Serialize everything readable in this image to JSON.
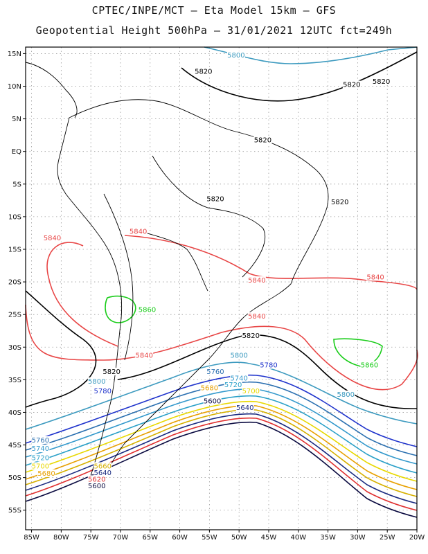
{
  "title_line1": "CPTEC/INPE/MCT –  Eta Model 15km – GFS",
  "title_line2": "Geopotential Height 500hPa – 31/01/2021 12UTC fct=249h",
  "lat_ticks": [
    "15N",
    "10N",
    "5N",
    "EQ",
    "5S",
    "10S",
    "15S",
    "20S",
    "25S",
    "30S",
    "35S",
    "40S",
    "45S",
    "50S",
    "55S"
  ],
  "lon_ticks": [
    "85W",
    "80W",
    "75W",
    "70W",
    "65W",
    "60W",
    "55W",
    "50W",
    "45W",
    "40W",
    "35W",
    "30W",
    "25W",
    "20W"
  ],
  "map_extent": {
    "lon_min": -86,
    "lon_max": -20,
    "lat_min": -58,
    "lat_max": 16
  },
  "contour_colors": {
    "5860": "#18cc18",
    "5840": "#e84646",
    "5820": "#000000",
    "5800": "#3c9abf",
    "5780": "#1f33cc",
    "5760": "#2a6fb0",
    "5740": "#3399cc",
    "5720": "#2aa0c8",
    "5700": "#e8d800",
    "5680": "#e8a000",
    "5660": "#d6b000",
    "5640": "#1a2a80",
    "5620": "#e03030",
    "5600": "#0a0a40"
  },
  "contour_labels": [
    {
      "text": "5800",
      "lon": -50.5,
      "lat": 14.5,
      "color": "#3c9abf"
    },
    {
      "text": "5820",
      "lon": -56,
      "lat": 12.0,
      "color": "#000000"
    },
    {
      "text": "5820",
      "lon": -26,
      "lat": 10.5,
      "color": "#000000"
    },
    {
      "text": "5820",
      "lon": -31,
      "lat": 10.0,
      "color": "#000000"
    },
    {
      "text": "5820",
      "lon": -46,
      "lat": 1.5,
      "color": "#000000"
    },
    {
      "text": "5820",
      "lon": -54,
      "lat": -7.5,
      "color": "#000000"
    },
    {
      "text": "5820",
      "lon": -33,
      "lat": -8.0,
      "color": "#000000"
    },
    {
      "text": "5840",
      "lon": -67,
      "lat": -12.5,
      "color": "#e84646"
    },
    {
      "text": "5840",
      "lon": -81.5,
      "lat": -13.5,
      "color": "#e84646"
    },
    {
      "text": "5840",
      "lon": -47,
      "lat": -20.0,
      "color": "#e84646"
    },
    {
      "text": "5840",
      "lon": -27,
      "lat": -19.5,
      "color": "#e84646"
    },
    {
      "text": "5860",
      "lon": -65.5,
      "lat": -24.5,
      "color": "#18cc18"
    },
    {
      "text": "5840",
      "lon": -47,
      "lat": -25.5,
      "color": "#e84646"
    },
    {
      "text": "5820",
      "lon": -48,
      "lat": -28.5,
      "color": "#000000"
    },
    {
      "text": "5840",
      "lon": -66,
      "lat": -31.5,
      "color": "#e84646"
    },
    {
      "text": "5800",
      "lon": -50,
      "lat": -31.5,
      "color": "#3c9abf"
    },
    {
      "text": "5860",
      "lon": -28,
      "lat": -33.0,
      "color": "#18cc18"
    },
    {
      "text": "5780",
      "lon": -45,
      "lat": -33.0,
      "color": "#1f33cc"
    },
    {
      "text": "5820",
      "lon": -71.5,
      "lat": -34.0,
      "color": "#000000"
    },
    {
      "text": "5760",
      "lon": -54,
      "lat": -34.0,
      "color": "#2a6fb0"
    },
    {
      "text": "5740",
      "lon": -50,
      "lat": -35.0,
      "color": "#3399cc"
    },
    {
      "text": "5800",
      "lon": -74,
      "lat": -35.5,
      "color": "#3c9abf"
    },
    {
      "text": "5720",
      "lon": -51,
      "lat": -36.0,
      "color": "#2aa0c8"
    },
    {
      "text": "5780",
      "lon": -73,
      "lat": -37.0,
      "color": "#1f33cc"
    },
    {
      "text": "5680",
      "lon": -55,
      "lat": -36.5,
      "color": "#e8a000"
    },
    {
      "text": "5700",
      "lon": -48,
      "lat": -37.0,
      "color": "#e8d800"
    },
    {
      "text": "5800",
      "lon": -32,
      "lat": -37.5,
      "color": "#3c9abf"
    },
    {
      "text": "5600",
      "lon": -54.5,
      "lat": -38.5,
      "color": "#0a0a40"
    },
    {
      "text": "5640",
      "lon": -49,
      "lat": -39.5,
      "color": "#1a2a80"
    },
    {
      "text": "5760",
      "lon": -83.5,
      "lat": -44.5,
      "color": "#2a6fb0"
    },
    {
      "text": "5740",
      "lon": -83.5,
      "lat": -45.8,
      "color": "#3399cc"
    },
    {
      "text": "5720",
      "lon": -83.5,
      "lat": -47.2,
      "color": "#2aa0c8"
    },
    {
      "text": "5700",
      "lon": -83.5,
      "lat": -48.5,
      "color": "#e8d800"
    },
    {
      "text": "5680",
      "lon": -82.5,
      "lat": -49.6,
      "color": "#e8a000"
    },
    {
      "text": "5660",
      "lon": -73,
      "lat": -48.5,
      "color": "#d6b000"
    },
    {
      "text": "5640",
      "lon": -73,
      "lat": -49.5,
      "color": "#1a2a80"
    },
    {
      "text": "5620",
      "lon": -74,
      "lat": -50.5,
      "color": "#e03030"
    },
    {
      "text": "5600",
      "lon": -74,
      "lat": -51.5,
      "color": "#0a0a40"
    }
  ]
}
